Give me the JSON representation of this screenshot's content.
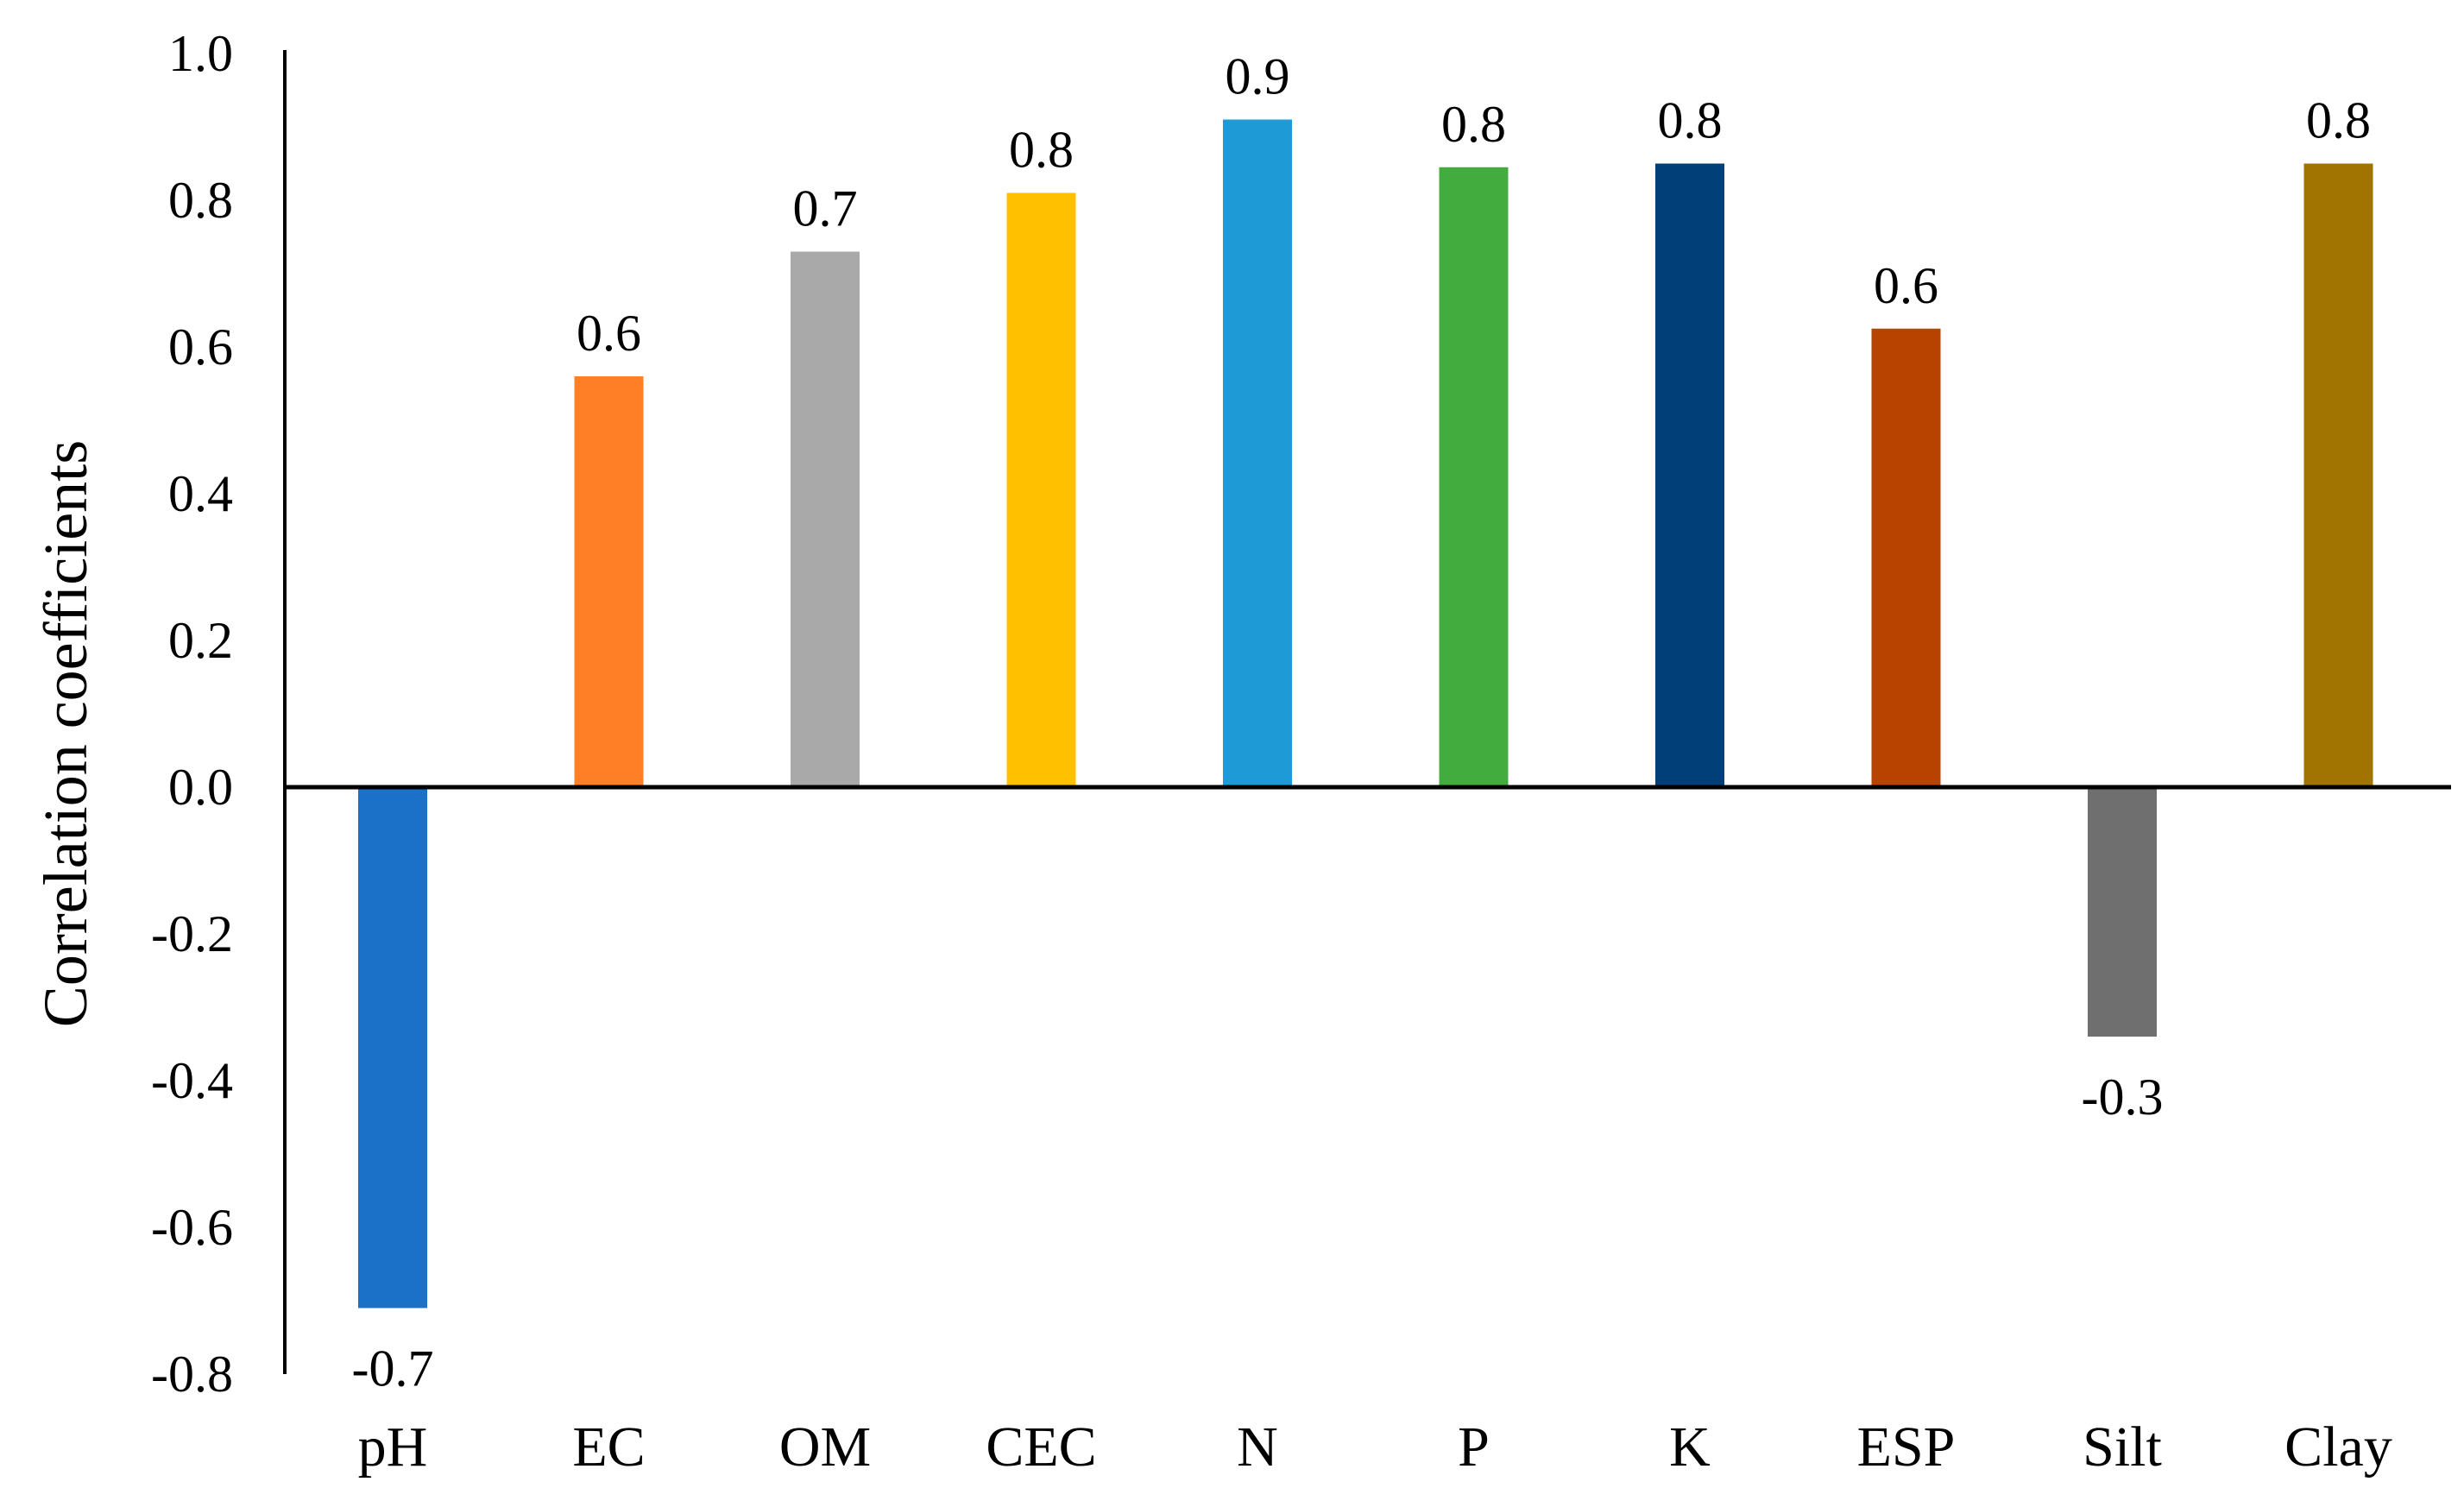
{
  "chart_data": {
    "type": "bar",
    "title": "",
    "xlabel": "",
    "ylabel": "Correlation coefficients",
    "ylim": [
      -0.8,
      1.0
    ],
    "ytick_step": 0.2,
    "yticks": [
      "1.0",
      "0.8",
      "0.6",
      "0.4",
      "0.2",
      "0.0",
      "-0.2",
      "-0.4",
      "-0.6",
      "-0.8"
    ],
    "grid": false,
    "legend": "none",
    "categories": [
      "pH",
      "EC",
      "OM",
      "CEC",
      "N",
      "P",
      "K",
      "ESP",
      "Silt",
      "Clay"
    ],
    "values": [
      -0.71,
      0.56,
      0.73,
      0.81,
      0.91,
      0.845,
      0.85,
      0.625,
      -0.34,
      0.85
    ],
    "data_labels": [
      "-0.7",
      "0.6",
      "0.7",
      "0.8",
      "0.9",
      "0.8",
      "0.8",
      "0.6",
      "-0.3",
      "0.8"
    ],
    "colors": [
      "#1B70C8",
      "#FF7F27",
      "#A9A9A9",
      "#FFC000",
      "#1E9BD7",
      "#43AC3F",
      "#003F78",
      "#B84300",
      "#6F6F6F",
      "#A17300"
    ]
  }
}
